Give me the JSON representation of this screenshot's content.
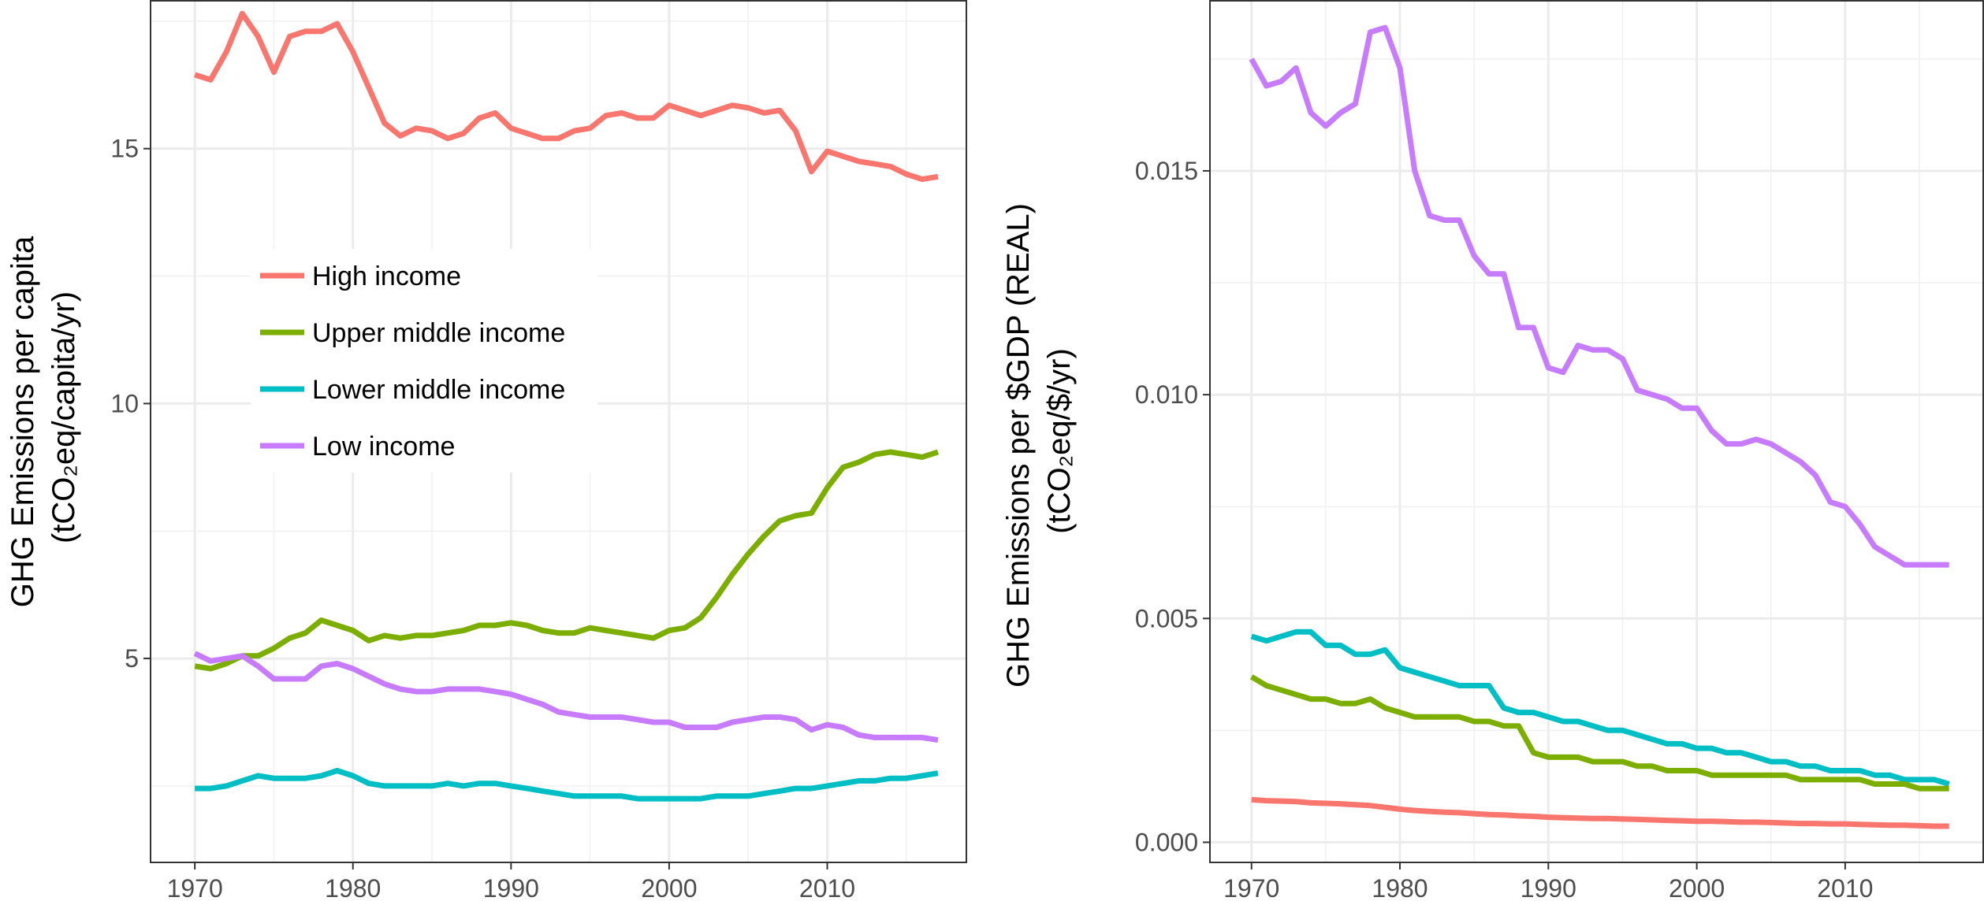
{
  "chart_data": [
    {
      "type": "line",
      "title": "",
      "ylabel": [
        "GHG Emissions per capita",
        "(tCO₂eq/capita/yr)"
      ],
      "xlabel": "",
      "xlim": [
        1967.2,
        2018.8
      ],
      "ylim": [
        1.0,
        17.9
      ],
      "x_ticks": [
        1970,
        1980,
        1990,
        2000,
        2010
      ],
      "x_tick_labels": [
        "1970",
        "1980",
        "1990",
        "2000",
        "2010"
      ],
      "y_ticks": [
        5,
        10,
        15
      ],
      "y_tick_labels": [
        "5",
        "10",
        "15"
      ],
      "grid": true,
      "legend": "inside-left",
      "x": [
        1970,
        1971,
        1972,
        1973,
        1974,
        1975,
        1976,
        1977,
        1978,
        1979,
        1980,
        1981,
        1982,
        1983,
        1984,
        1985,
        1986,
        1987,
        1988,
        1989,
        1990,
        1991,
        1992,
        1993,
        1994,
        1995,
        1996,
        1997,
        1998,
        1999,
        2000,
        2001,
        2002,
        2003,
        2004,
        2005,
        2006,
        2007,
        2008,
        2009,
        2010,
        2011,
        2012,
        2013,
        2014,
        2015,
        2016,
        2017
      ],
      "series": [
        {
          "name": "High income",
          "color": "#F8766D",
          "values": [
            16.45,
            16.35,
            16.9,
            17.65,
            17.2,
            16.5,
            17.2,
            17.3,
            17.3,
            17.45,
            16.9,
            16.2,
            15.5,
            15.25,
            15.4,
            15.35,
            15.2,
            15.3,
            15.6,
            15.7,
            15.4,
            15.3,
            15.2,
            15.2,
            15.35,
            15.4,
            15.65,
            15.7,
            15.6,
            15.6,
            15.85,
            15.75,
            15.65,
            15.75,
            15.85,
            15.8,
            15.7,
            15.75,
            15.35,
            14.55,
            14.95,
            14.85,
            14.75,
            14.7,
            14.65,
            14.5,
            14.4,
            14.45
          ]
        },
        {
          "name": "Upper middle income",
          "color": "#7CAE00",
          "values": [
            4.85,
            4.8,
            4.9,
            5.05,
            5.05,
            5.2,
            5.4,
            5.5,
            5.75,
            5.65,
            5.55,
            5.35,
            5.45,
            5.4,
            5.45,
            5.45,
            5.5,
            5.55,
            5.65,
            5.65,
            5.7,
            5.65,
            5.55,
            5.5,
            5.5,
            5.6,
            5.55,
            5.5,
            5.45,
            5.4,
            5.55,
            5.6,
            5.8,
            6.2,
            6.65,
            7.05,
            7.4,
            7.7,
            7.8,
            7.85,
            8.35,
            8.75,
            8.85,
            9.0,
            9.05,
            9.0,
            8.95,
            9.05
          ]
        },
        {
          "name": "Lower middle income",
          "color": "#00BFC4",
          "values": [
            2.45,
            2.45,
            2.5,
            2.6,
            2.7,
            2.65,
            2.65,
            2.65,
            2.7,
            2.8,
            2.7,
            2.55,
            2.5,
            2.5,
            2.5,
            2.5,
            2.55,
            2.5,
            2.55,
            2.55,
            2.5,
            2.45,
            2.4,
            2.35,
            2.3,
            2.3,
            2.3,
            2.3,
            2.25,
            2.25,
            2.25,
            2.25,
            2.25,
            2.3,
            2.3,
            2.3,
            2.35,
            2.4,
            2.45,
            2.45,
            2.5,
            2.55,
            2.6,
            2.6,
            2.65,
            2.65,
            2.7,
            2.75
          ]
        },
        {
          "name": "Low income",
          "color": "#C77CFF",
          "values": [
            5.1,
            4.95,
            5.0,
            5.05,
            4.85,
            4.6,
            4.6,
            4.6,
            4.85,
            4.9,
            4.8,
            4.65,
            4.5,
            4.4,
            4.35,
            4.35,
            4.4,
            4.4,
            4.4,
            4.35,
            4.3,
            4.2,
            4.1,
            3.95,
            3.9,
            3.85,
            3.85,
            3.85,
            3.8,
            3.75,
            3.75,
            3.65,
            3.65,
            3.65,
            3.75,
            3.8,
            3.85,
            3.85,
            3.8,
            3.6,
            3.7,
            3.65,
            3.5,
            3.45,
            3.45,
            3.45,
            3.45,
            3.4
          ]
        }
      ]
    },
    {
      "type": "line",
      "title": "",
      "ylabel": [
        "GHG Emissions per $GDP (REAL)",
        "(tCO₂eq/$/yr)"
      ],
      "xlabel": "",
      "xlim": [
        1967.2,
        2019.3
      ],
      "ylim": [
        -0.00045,
        0.0188
      ],
      "x_ticks": [
        1970,
        1980,
        1990,
        2000,
        2010
      ],
      "x_tick_labels": [
        "1970",
        "1980",
        "1990",
        "2000",
        "2010"
      ],
      "y_ticks": [
        0.0,
        0.005,
        0.01,
        0.015
      ],
      "y_tick_labels": [
        "0.000",
        "0.005",
        "0.010",
        "0.015"
      ],
      "grid": true,
      "legend": "none",
      "x": [
        1970,
        1971,
        1972,
        1973,
        1974,
        1975,
        1976,
        1977,
        1978,
        1979,
        1980,
        1981,
        1982,
        1983,
        1984,
        1985,
        1986,
        1987,
        1988,
        1989,
        1990,
        1991,
        1992,
        1993,
        1994,
        1995,
        1996,
        1997,
        1998,
        1999,
        2000,
        2001,
        2002,
        2003,
        2004,
        2005,
        2006,
        2007,
        2008,
        2009,
        2010,
        2011,
        2012,
        2013,
        2014,
        2015,
        2016,
        2017
      ],
      "series": [
        {
          "name": "Low income",
          "color": "#C77CFF",
          "values": [
            0.0175,
            0.0169,
            0.017,
            0.0173,
            0.0163,
            0.016,
            0.0163,
            0.0165,
            0.0181,
            0.0182,
            0.0173,
            0.015,
            0.014,
            0.0139,
            0.0139,
            0.0131,
            0.0127,
            0.0127,
            0.0115,
            0.0115,
            0.0106,
            0.0105,
            0.0111,
            0.011,
            0.011,
            0.0108,
            0.0101,
            0.01,
            0.0099,
            0.0097,
            0.0097,
            0.0092,
            0.0089,
            0.0089,
            0.009,
            0.0089,
            0.0087,
            0.0085,
            0.0082,
            0.0076,
            0.0075,
            0.0071,
            0.0066,
            0.0064,
            0.0062,
            0.0062,
            0.0062,
            0.0062
          ]
        },
        {
          "name": "Lower middle income",
          "color": "#00BFC4",
          "values": [
            0.0046,
            0.0045,
            0.0046,
            0.0047,
            0.0047,
            0.0044,
            0.0044,
            0.0042,
            0.0042,
            0.0043,
            0.0039,
            0.0038,
            0.0037,
            0.0036,
            0.0035,
            0.0035,
            0.0035,
            0.003,
            0.0029,
            0.0029,
            0.0028,
            0.0027,
            0.0027,
            0.0026,
            0.0025,
            0.0025,
            0.0024,
            0.0023,
            0.0022,
            0.0022,
            0.0021,
            0.0021,
            0.002,
            0.002,
            0.0019,
            0.0018,
            0.0018,
            0.0017,
            0.0017,
            0.0016,
            0.0016,
            0.0016,
            0.0015,
            0.0015,
            0.0014,
            0.0014,
            0.0014,
            0.0013
          ]
        },
        {
          "name": "Upper middle income",
          "color": "#7CAE00",
          "values": [
            0.0037,
            0.0035,
            0.0034,
            0.0033,
            0.0032,
            0.0032,
            0.0031,
            0.0031,
            0.0032,
            0.003,
            0.0029,
            0.0028,
            0.0028,
            0.0028,
            0.0028,
            0.0027,
            0.0027,
            0.0026,
            0.0026,
            0.002,
            0.0019,
            0.0019,
            0.0019,
            0.0018,
            0.0018,
            0.0018,
            0.0017,
            0.0017,
            0.0016,
            0.0016,
            0.0016,
            0.0015,
            0.0015,
            0.0015,
            0.0015,
            0.0015,
            0.0015,
            0.0014,
            0.0014,
            0.0014,
            0.0014,
            0.0014,
            0.0013,
            0.0013,
            0.0013,
            0.0012,
            0.0012,
            0.0012
          ]
        },
        {
          "name": "High income",
          "color": "#F8766D",
          "values": [
            0.00095,
            0.00093,
            0.00092,
            0.00091,
            0.00088,
            0.00087,
            0.00086,
            0.00084,
            0.00082,
            0.00078,
            0.00074,
            0.00071,
            0.00069,
            0.00067,
            0.00066,
            0.00064,
            0.00062,
            0.00061,
            0.00059,
            0.00058,
            0.00056,
            0.00055,
            0.00054,
            0.00053,
            0.00053,
            0.00052,
            0.00051,
            0.0005,
            0.00049,
            0.00048,
            0.00047,
            0.00047,
            0.00046,
            0.00045,
            0.00045,
            0.00044,
            0.00043,
            0.00042,
            0.00042,
            0.00041,
            0.00041,
            0.0004,
            0.00039,
            0.00038,
            0.00038,
            0.00037,
            0.00036,
            0.00036
          ]
        }
      ]
    }
  ]
}
